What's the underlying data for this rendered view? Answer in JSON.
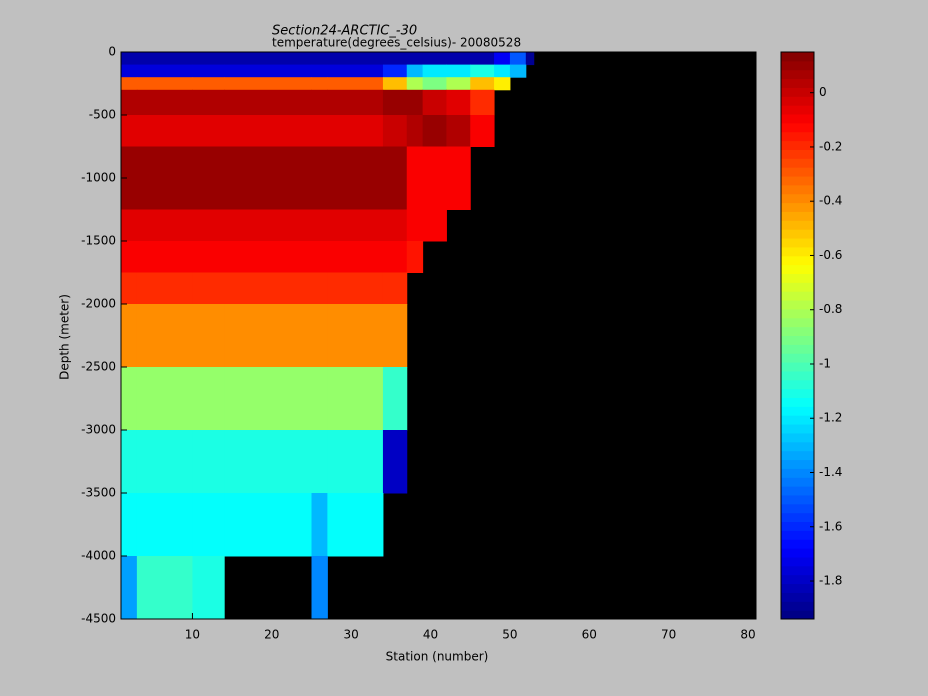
{
  "chart_data": {
    "type": "heatmap",
    "title": "Section24-ARCTIC_-30",
    "subtitle": "temperature(degrees_celsius)- 20080528",
    "x_label": "Station (number)",
    "y_label": "Depth (meter)",
    "xlim": [
      1,
      81
    ],
    "xticks": [
      10,
      20,
      30,
      40,
      50,
      60,
      70,
      80
    ],
    "ylim": [
      -4500,
      0
    ],
    "yticks": [
      0,
      -500,
      -1000,
      -1500,
      -2000,
      -2500,
      -3000,
      -3500,
      -4000,
      -4500
    ],
    "colormap": "jet",
    "missing_color": "#000000",
    "clim": [
      -1.94,
      0.15
    ],
    "cticks": [
      0,
      -0.2,
      -0.4,
      -0.6,
      -0.8,
      -1,
      -1.2,
      -1.4,
      -1.6,
      -1.8
    ],
    "x_edges": [
      1,
      3,
      10,
      14,
      25,
      27,
      34,
      37,
      39,
      42,
      45,
      48,
      50,
      52,
      53,
      81
    ],
    "y_edges": [
      0,
      -100,
      -200,
      -300,
      -500,
      -750,
      -1250,
      -1500,
      -1750,
      -2000,
      -2500,
      -3000,
      -3500,
      -4000,
      -4500
    ],
    "values": [
      [
        -1.85,
        -1.85,
        -1.85,
        -1.85,
        -1.85,
        -1.85,
        -1.85,
        -1.85,
        -1.85,
        -1.85,
        -1.85,
        -1.7,
        -1.5,
        -1.9,
        null
      ],
      [
        -1.75,
        -1.75,
        -1.75,
        -1.75,
        -1.75,
        -1.75,
        -1.6,
        -1.3,
        -1.2,
        -1.2,
        -1.1,
        -1.2,
        -1.3,
        null,
        null
      ],
      [
        -0.3,
        -0.3,
        -0.3,
        -0.3,
        -0.3,
        -0.3,
        -0.5,
        -0.8,
        -0.9,
        -0.8,
        -0.5,
        -0.6,
        null,
        null,
        null
      ],
      [
        0.05,
        0.05,
        0.05,
        0.05,
        0.05,
        0.05,
        0.1,
        0.1,
        0,
        -0.05,
        -0.2,
        null,
        null,
        null,
        null
      ],
      [
        -0.05,
        -0.05,
        -0.05,
        -0.05,
        -0.05,
        -0.05,
        0,
        0.05,
        0.1,
        0.05,
        -0.1,
        null,
        null,
        null,
        null
      ],
      [
        0.1,
        0.1,
        0.1,
        0.1,
        0.1,
        0.1,
        0.1,
        -0.1,
        -0.1,
        -0.1,
        null,
        null,
        null,
        null,
        null
      ],
      [
        -0.05,
        -0.05,
        -0.05,
        -0.05,
        -0.05,
        -0.05,
        -0.05,
        -0.1,
        -0.1,
        null,
        null,
        null,
        null,
        null,
        null
      ],
      [
        -0.1,
        -0.1,
        -0.1,
        -0.1,
        -0.1,
        -0.1,
        -0.1,
        -0.15,
        null,
        null,
        null,
        null,
        null,
        null,
        null
      ],
      [
        -0.2,
        -0.2,
        -0.2,
        -0.2,
        -0.2,
        -0.2,
        -0.2,
        null,
        null,
        null,
        null,
        null,
        null,
        null,
        null
      ],
      [
        -0.4,
        -0.4,
        -0.4,
        -0.4,
        -0.4,
        -0.4,
        -0.4,
        null,
        null,
        null,
        null,
        null,
        null,
        null,
        null
      ],
      [
        -0.85,
        -0.85,
        -0.85,
        -0.85,
        -0.85,
        -0.85,
        -1.05,
        null,
        null,
        null,
        null,
        null,
        null,
        null,
        null
      ],
      [
        -1.1,
        -1.1,
        -1.1,
        -1.1,
        -1.1,
        -1.1,
        -1.8,
        null,
        null,
        null,
        null,
        null,
        null,
        null,
        null
      ],
      [
        -1.15,
        -1.15,
        -1.15,
        -1.15,
        -1.3,
        -1.15,
        null,
        null,
        null,
        null,
        null,
        null,
        null,
        null,
        null
      ],
      [
        -1.35,
        -1.05,
        -1.1,
        null,
        -1.4,
        null,
        null,
        null,
        null,
        null,
        null,
        null,
        null,
        null,
        null
      ]
    ]
  }
}
